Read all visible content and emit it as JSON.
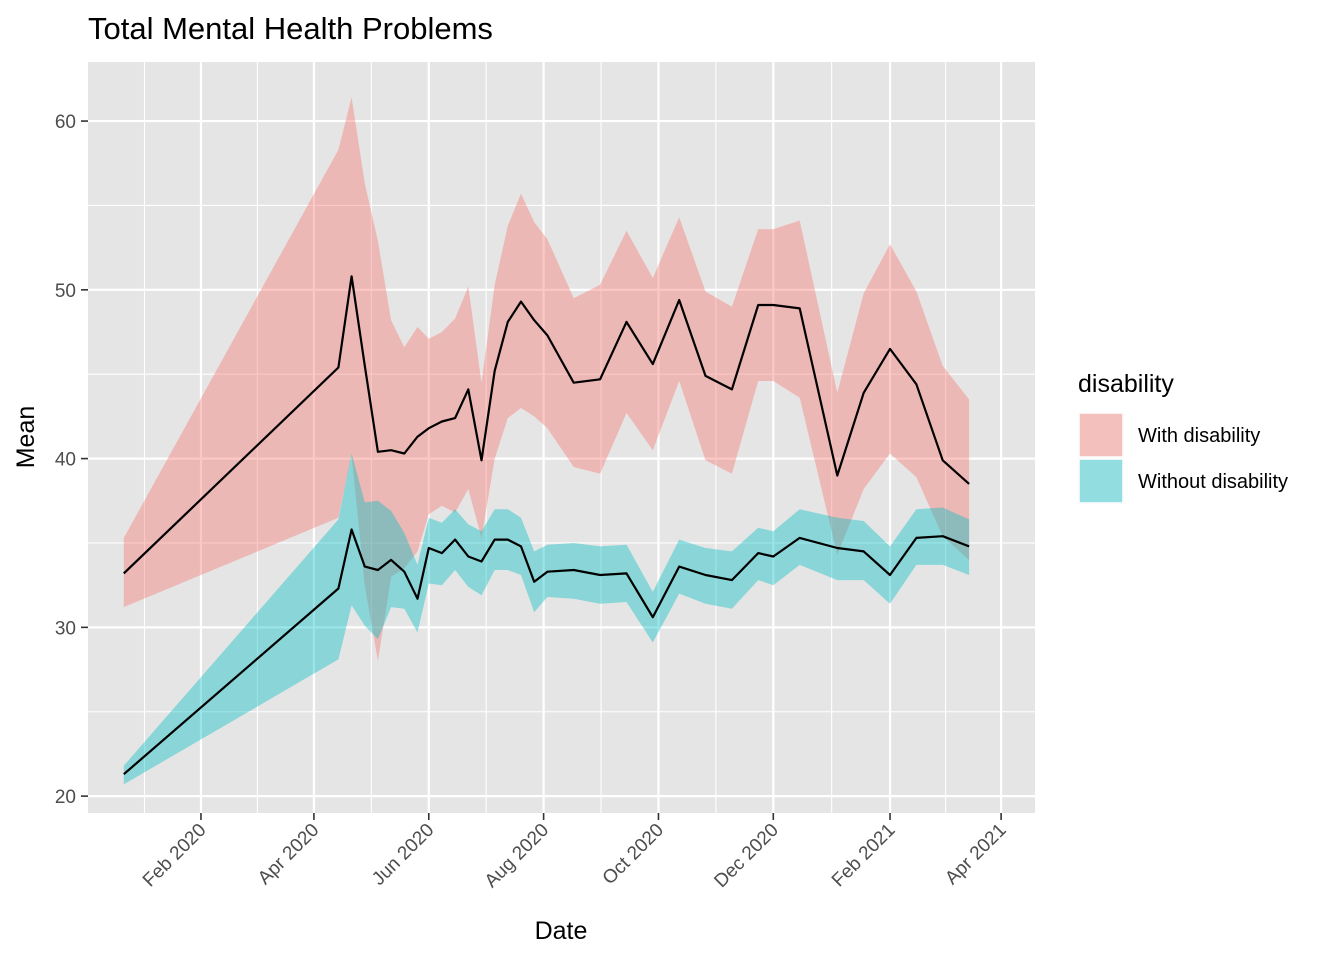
{
  "chart_data": {
    "type": "area",
    "title": "Total Mental Health Problems",
    "xlabel": "Date",
    "ylabel": "Mean",
    "ylim": [
      19,
      63.5
    ],
    "y_ticks": [
      20,
      30,
      40,
      50,
      60
    ],
    "x_range": [
      "2019-12-03",
      "2021-04-19"
    ],
    "x_ticks": [
      "2020-02-01",
      "2020-04-01",
      "2020-06-01",
      "2020-08-01",
      "2020-10-01",
      "2020-12-01",
      "2021-02-01",
      "2021-04-01"
    ],
    "x_tick_labels": [
      "Feb 2020",
      "Apr 2020",
      "Jun 2020",
      "Aug 2020",
      "Oct 2020",
      "Dec 2020",
      "Feb 2021",
      "Apr 2021"
    ],
    "x_tick_label_angle": 45,
    "grid": true,
    "panel_background": "#e5e5e5",
    "grid_color": "#ffffff",
    "legend_position": "right",
    "legend": {
      "title": "disability",
      "items": [
        {
          "label": "With disability",
          "color": "#f8766d"
        },
        {
          "label": "Without disability",
          "color": "#00bfc4"
        }
      ]
    },
    "line_color": "#000000",
    "ribbon_alpha": 0.4,
    "series": [
      {
        "name": "With disability",
        "color": "#f8766d",
        "x": [
          "2019-12-22",
          "2020-04-14",
          "2020-04-21",
          "2020-04-28",
          "2020-05-05",
          "2020-05-12",
          "2020-05-19",
          "2020-05-26",
          "2020-06-01",
          "2020-06-08",
          "2020-06-15",
          "2020-06-22",
          "2020-06-29",
          "2020-07-06",
          "2020-07-13",
          "2020-07-20",
          "2020-07-27",
          "2020-08-03",
          "2020-08-17",
          "2020-08-31",
          "2020-09-14",
          "2020-09-28",
          "2020-10-12",
          "2020-10-26",
          "2020-11-09",
          "2020-11-23",
          "2020-12-01",
          "2020-12-15",
          "2021-01-04",
          "2021-01-18",
          "2021-02-01",
          "2021-02-15",
          "2021-03-01",
          "2021-03-15"
        ],
        "mean": [
          33.2,
          45.4,
          50.8,
          45.5,
          40.4,
          40.5,
          40.3,
          41.3,
          41.8,
          42.2,
          42.4,
          44.1,
          39.9,
          45.2,
          48.1,
          49.3,
          48.2,
          47.3,
          44.5,
          44.7,
          48.1,
          45.6,
          49.4,
          44.9,
          44.1,
          49.1,
          49.1,
          48.9,
          39.0,
          43.9,
          46.5,
          44.4,
          39.9,
          38.5
        ],
        "lower": [
          31.2,
          36.5,
          40.2,
          32.5,
          28.0,
          33.0,
          33.5,
          34.5,
          36.7,
          37.2,
          36.8,
          38.2,
          35.3,
          40.0,
          42.4,
          43.0,
          42.5,
          41.8,
          39.5,
          39.1,
          42.7,
          40.5,
          44.6,
          39.9,
          39.1,
          44.6,
          44.6,
          43.6,
          34.3,
          38.2,
          40.3,
          38.9,
          35.4,
          34.0
        ],
        "upper": [
          35.3,
          58.3,
          61.4,
          56.3,
          52.9,
          48.2,
          46.6,
          47.8,
          47.1,
          47.5,
          48.3,
          50.2,
          44.5,
          50.3,
          53.8,
          55.7,
          54.0,
          53.0,
          49.5,
          50.3,
          53.5,
          50.7,
          54.3,
          49.9,
          49.0,
          53.6,
          53.6,
          54.1,
          43.9,
          49.8,
          52.7,
          49.9,
          45.5,
          43.5
        ]
      },
      {
        "name": "Without disability",
        "color": "#00bfc4",
        "x": [
          "2019-12-22",
          "2020-04-14",
          "2020-04-21",
          "2020-04-28",
          "2020-05-05",
          "2020-05-12",
          "2020-05-19",
          "2020-05-26",
          "2020-06-01",
          "2020-06-08",
          "2020-06-15",
          "2020-06-22",
          "2020-06-29",
          "2020-07-06",
          "2020-07-13",
          "2020-07-20",
          "2020-07-27",
          "2020-08-03",
          "2020-08-17",
          "2020-08-31",
          "2020-09-14",
          "2020-09-28",
          "2020-10-12",
          "2020-10-26",
          "2020-11-09",
          "2020-11-23",
          "2020-12-01",
          "2020-12-15",
          "2021-01-04",
          "2021-01-18",
          "2021-02-01",
          "2021-02-15",
          "2021-03-01",
          "2021-03-15"
        ],
        "mean": [
          21.3,
          32.3,
          35.8,
          33.6,
          33.4,
          34.0,
          33.3,
          31.7,
          34.7,
          34.4,
          35.2,
          34.2,
          33.9,
          35.2,
          35.2,
          34.8,
          32.7,
          33.3,
          33.4,
          33.1,
          33.2,
          30.6,
          33.6,
          33.1,
          32.8,
          34.4,
          34.2,
          35.3,
          34.7,
          34.5,
          33.1,
          35.3,
          35.4,
          34.8
        ],
        "lower": [
          20.7,
          28.1,
          31.3,
          30.1,
          29.3,
          31.2,
          31.1,
          29.7,
          32.6,
          32.5,
          33.4,
          32.4,
          31.9,
          33.4,
          33.4,
          33.1,
          30.9,
          31.8,
          31.7,
          31.4,
          31.5,
          29.1,
          32.0,
          31.4,
          31.1,
          32.8,
          32.5,
          33.7,
          32.8,
          32.8,
          31.4,
          33.7,
          33.7,
          33.1
        ],
        "upper": [
          21.8,
          36.4,
          40.3,
          37.4,
          37.5,
          36.9,
          35.6,
          33.7,
          36.5,
          36.2,
          37.0,
          36.1,
          35.7,
          37.0,
          37.0,
          36.5,
          34.5,
          34.9,
          35.0,
          34.8,
          34.9,
          32.1,
          35.2,
          34.7,
          34.5,
          35.9,
          35.7,
          37.0,
          36.5,
          36.3,
          34.8,
          37.0,
          37.1,
          36.4
        ]
      }
    ]
  }
}
